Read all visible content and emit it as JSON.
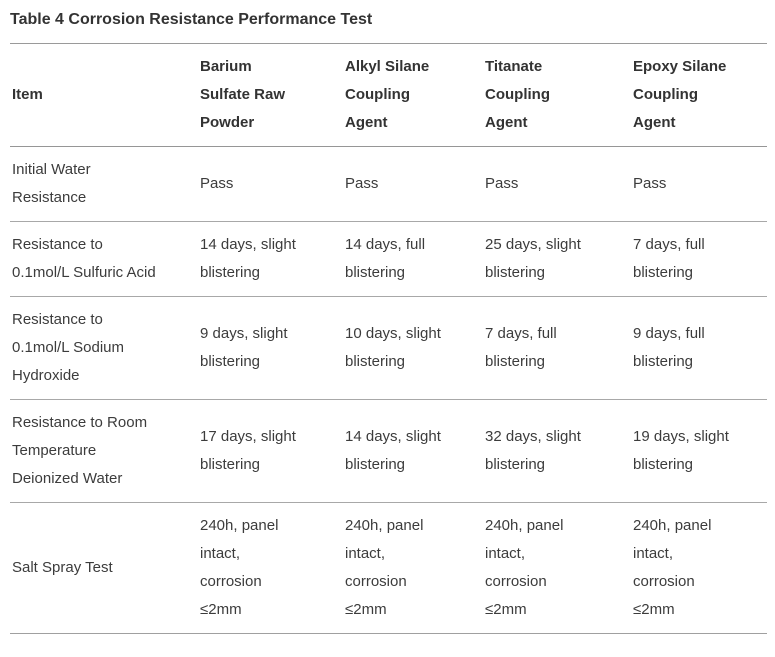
{
  "title": "Table 4 Corrosion Resistance Performance Test",
  "colors": {
    "text": "#3c3c3c",
    "heading": "#333333",
    "rule_strong": "#9a9a9a",
    "rule_light": "#a8a8a8",
    "background": "#ffffff"
  },
  "table": {
    "columns": [
      "Item",
      "Barium Sulfate Raw Powder",
      "Alkyl Silane Coupling Agent",
      "Titanate Coupling Agent",
      "Epoxy Silane Coupling Agent"
    ],
    "rows": [
      {
        "item": "Initial Water Resistance",
        "values": [
          "Pass",
          "Pass",
          "Pass",
          "Pass"
        ]
      },
      {
        "item": "Resistance to 0.1mol/L Sulfuric Acid",
        "values": [
          "14 days, slight blistering",
          "14 days, full blistering",
          "25 days, slight blistering",
          "7 days, full blistering"
        ]
      },
      {
        "item": "Resistance to 0.1mol/L Sodium Hydroxide",
        "values": [
          "9 days, slight blistering",
          "10 days, slight blistering",
          "7 days, full blistering",
          "9 days, full blistering"
        ]
      },
      {
        "item": "Resistance to Room Temperature Deionized Water",
        "values": [
          "17 days, slight blistering",
          "14 days, slight blistering",
          "32 days, slight blistering",
          "19 days, slight blistering"
        ]
      },
      {
        "item": "Salt Spray Test",
        "values": [
          "240h, panel intact, corrosion ≤2mm",
          "240h, panel intact, corrosion ≤2mm",
          "240h, panel intact, corrosion ≤2mm",
          "240h, panel intact, corrosion ≤2mm"
        ]
      }
    ]
  }
}
